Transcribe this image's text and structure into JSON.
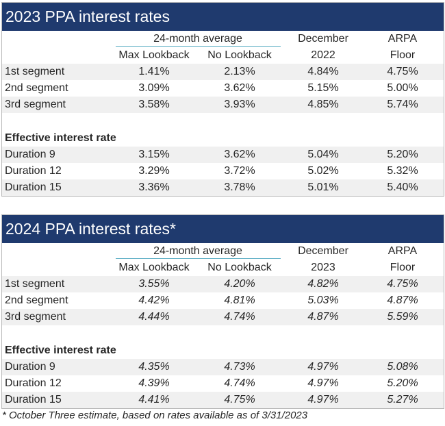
{
  "tables": [
    {
      "title": "2023 PPA interest rates",
      "header": {
        "group_label": "24-month average",
        "col1": "Max Lookback",
        "col2": "No Lookback",
        "col3_line1": "December",
        "col3_line2": "2022",
        "col4_line1": "ARPA",
        "col4_line2": "Floor"
      },
      "segments": [
        {
          "label": "1st segment",
          "v": [
            "1.41%",
            "2.13%",
            "4.84%",
            "4.75%"
          ]
        },
        {
          "label": "2nd segment",
          "v": [
            "3.09%",
            "3.62%",
            "5.15%",
            "5.00%"
          ]
        },
        {
          "label": "3rd segment",
          "v": [
            "3.58%",
            "3.93%",
            "4.85%",
            "5.74%"
          ]
        }
      ],
      "effective_label": "Effective interest rate",
      "durations": [
        {
          "label": "Duration 9",
          "v": [
            "3.15%",
            "3.62%",
            "5.04%",
            "5.20%"
          ]
        },
        {
          "label": "Duration 12",
          "v": [
            "3.29%",
            "3.72%",
            "5.02%",
            "5.32%"
          ]
        },
        {
          "label": "Duration 15",
          "v": [
            "3.36%",
            "3.78%",
            "5.01%",
            "5.40%"
          ]
        }
      ]
    },
    {
      "title": "2024 PPA interest rates*",
      "header": {
        "group_label": "24-month average",
        "col1": "Max Lookback",
        "col2": "No Lookback",
        "col3_line1": "December",
        "col3_line2": "2023",
        "col4_line1": "ARPA",
        "col4_line2": "Floor"
      },
      "segments": [
        {
          "label": "1st segment",
          "v": [
            "3.55%",
            "4.20%",
            "4.82%",
            "4.75%"
          ]
        },
        {
          "label": "2nd segment",
          "v": [
            "4.42%",
            "4.81%",
            "5.03%",
            "4.87%"
          ]
        },
        {
          "label": "3rd segment",
          "v": [
            "4.44%",
            "4.74%",
            "4.87%",
            "5.59%"
          ]
        }
      ],
      "effective_label": "Effective interest rate",
      "durations": [
        {
          "label": "Duration 9",
          "v": [
            "4.35%",
            "4.73%",
            "4.97%",
            "5.08%"
          ]
        },
        {
          "label": "Duration 12",
          "v": [
            "4.39%",
            "4.74%",
            "4.97%",
            "5.20%"
          ]
        },
        {
          "label": "Duration 15",
          "v": [
            "4.41%",
            "4.75%",
            "4.97%",
            "5.27%"
          ]
        }
      ]
    }
  ],
  "footnote": "* October Three estimate, based on rates available as of 3/31/2023"
}
